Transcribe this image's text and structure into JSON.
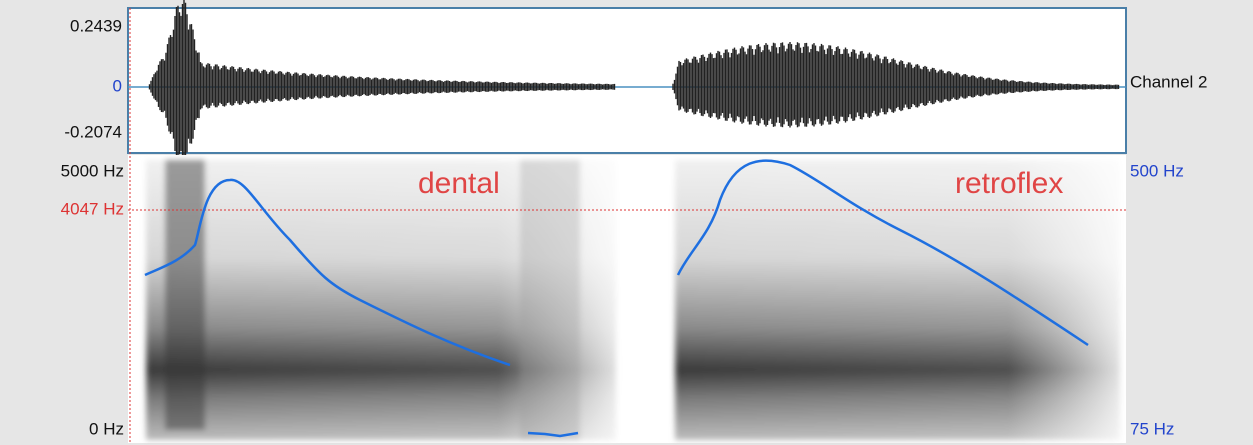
{
  "waveform": {
    "max_label": "0.2439",
    "zero_label": "0",
    "min_label": "-0.2074",
    "channel_label": "Channel 2"
  },
  "spectrogram": {
    "top_label": "5000 Hz",
    "cursor_label": "4047 Hz",
    "bottom_label": "0 Hz",
    "pitch_top_label": "500 Hz",
    "pitch_bottom_label": "75 Hz"
  },
  "annotations": {
    "left": "dental",
    "right": "retroflex"
  }
}
